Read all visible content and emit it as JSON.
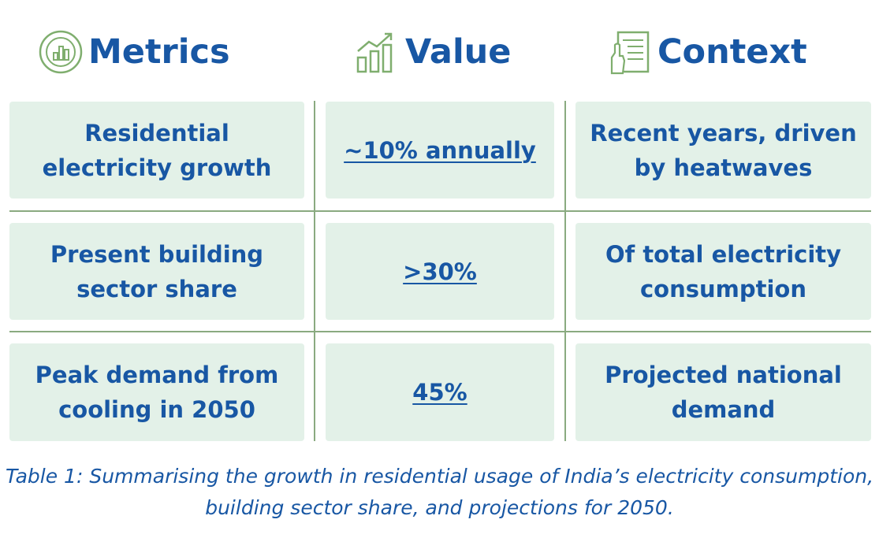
{
  "headers": {
    "metrics": {
      "label": "Metrics",
      "icon": "chart-circle-icon"
    },
    "value": {
      "label": "Value",
      "icon": "growth-bars-icon"
    },
    "context": {
      "label": "Context",
      "icon": "document-hand-icon"
    }
  },
  "rows": [
    {
      "metric": "Residential electricity growth",
      "value": "~10% annually",
      "context": "Recent years, driven by heatwaves"
    },
    {
      "metric": "Present building sector share",
      "value": ">30%",
      "context": "Of total electricity consumption"
    },
    {
      "metric": "Peak demand from cooling in 2050",
      "value": "45%",
      "context": "Projected national demand"
    }
  ],
  "caption": "Table 1: Summarising the growth in residential usage of India’s electricity consumption, building sector share, and projections for 2050.",
  "colors": {
    "text": "#1857a4",
    "cell_bg": "#e3f1e8",
    "rule": "#8aaa80",
    "icon": "#7fae6e"
  }
}
